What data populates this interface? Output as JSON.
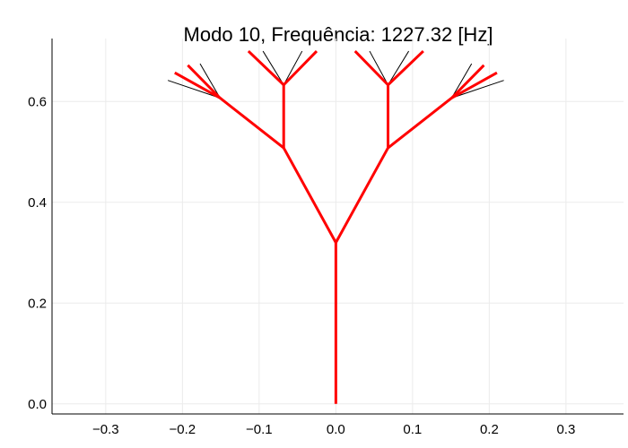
{
  "chart_data": {
    "type": "line",
    "title": "Modo 10, Frequência: 1227.32 [Hz]",
    "xlabel": "",
    "ylabel": "",
    "xlim": [
      -0.37,
      0.375
    ],
    "ylim": [
      -0.02,
      0.725
    ],
    "xticks": [
      -0.3,
      -0.2,
      -0.1,
      0.0,
      0.1,
      0.2,
      0.3
    ],
    "xtick_labels": [
      "−0.3",
      "−0.2",
      "−0.1",
      "0.0",
      "0.1",
      "0.2",
      "0.3"
    ],
    "yticks": [
      0.0,
      0.2,
      0.4,
      0.6
    ],
    "ytick_labels": [
      "0.0",
      "0.2",
      "0.4",
      "0.6"
    ],
    "grid": true,
    "series": [
      {
        "style": "deformed",
        "color": "#ff0000",
        "segments": [
          [
            [
              0.0,
              0.0
            ],
            [
              0.0,
              0.32
            ]
          ],
          [
            [
              0.0,
              0.32
            ],
            [
              -0.068,
              0.508
            ]
          ],
          [
            [
              0.0,
              0.32
            ],
            [
              0.068,
              0.508
            ]
          ],
          [
            [
              -0.068,
              0.508
            ],
            [
              -0.068,
              0.633
            ]
          ],
          [
            [
              -0.068,
              0.508
            ],
            [
              -0.151,
              0.607
            ]
          ],
          [
            [
              0.068,
              0.508
            ],
            [
              0.068,
              0.633
            ]
          ],
          [
            [
              0.068,
              0.508
            ],
            [
              0.151,
              0.607
            ]
          ],
          [
            [
              -0.068,
              0.633
            ],
            [
              -0.114,
              0.7
            ]
          ],
          [
            [
              -0.068,
              0.633
            ],
            [
              -0.025,
              0.7
            ]
          ],
          [
            [
              0.068,
              0.633
            ],
            [
              0.025,
              0.7
            ]
          ],
          [
            [
              0.068,
              0.633
            ],
            [
              0.114,
              0.7
            ]
          ],
          [
            [
              -0.151,
              0.607
            ],
            [
              -0.21,
              0.657
            ]
          ],
          [
            [
              -0.151,
              0.607
            ],
            [
              -0.193,
              0.672
            ]
          ],
          [
            [
              0.151,
              0.607
            ],
            [
              0.21,
              0.657
            ]
          ],
          [
            [
              0.151,
              0.607
            ],
            [
              0.193,
              0.672
            ]
          ]
        ]
      },
      {
        "style": "undeformed",
        "color": "#000000",
        "segments": [
          [
            [
              -0.068,
              0.633
            ],
            [
              -0.095,
              0.7
            ]
          ],
          [
            [
              -0.068,
              0.633
            ],
            [
              -0.044,
              0.7
            ]
          ],
          [
            [
              0.068,
              0.633
            ],
            [
              0.044,
              0.7
            ]
          ],
          [
            [
              0.068,
              0.633
            ],
            [
              0.095,
              0.7
            ]
          ],
          [
            [
              -0.151,
              0.607
            ],
            [
              -0.219,
              0.642
            ]
          ],
          [
            [
              -0.151,
              0.607
            ],
            [
              -0.177,
              0.675
            ]
          ],
          [
            [
              0.151,
              0.607
            ],
            [
              0.219,
              0.642
            ]
          ],
          [
            [
              0.151,
              0.607
            ],
            [
              0.177,
              0.675
            ]
          ]
        ]
      }
    ]
  }
}
